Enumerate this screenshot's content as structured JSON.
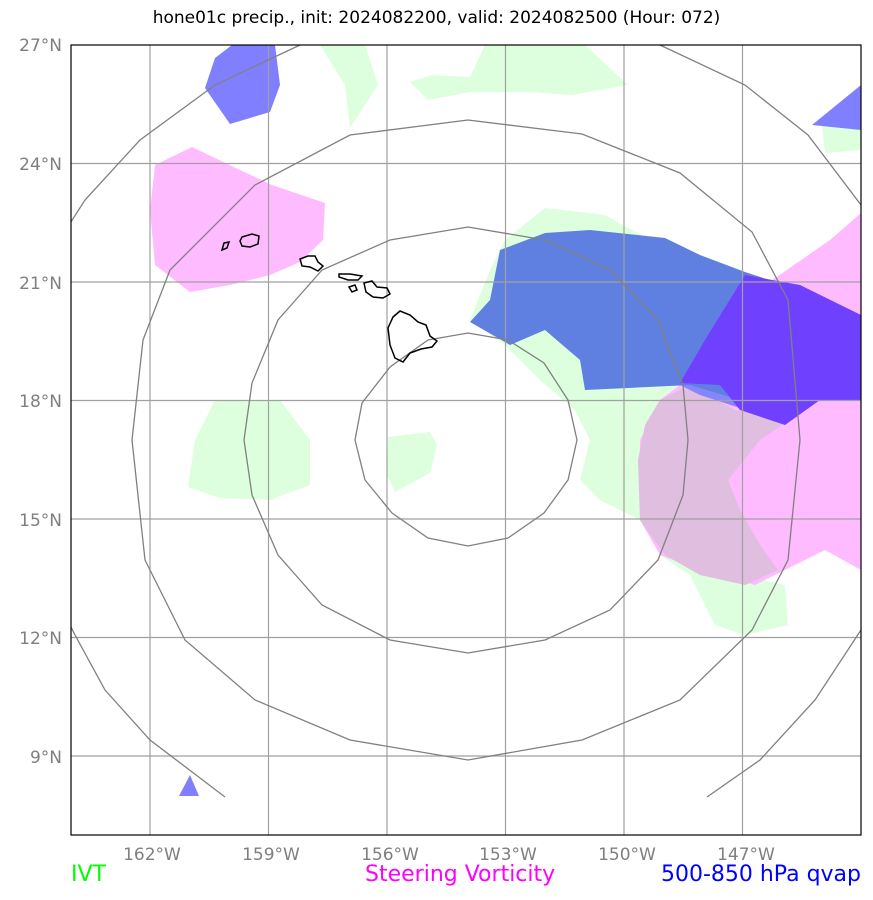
{
  "title": "hone01c precip., init: 2024082200, valid: 2024082500 (Hour: 072)",
  "map": {
    "lon_range": [
      -164,
      -144
    ],
    "lat_range": [
      7,
      27
    ],
    "lat_ticks": [
      "27°N",
      "24°N",
      "21°N",
      "18°N",
      "15°N",
      "12°N",
      "9°N"
    ],
    "lon_ticks": [
      "162°W",
      "159°W",
      "156°W",
      "153°W",
      "150°W",
      "147°W"
    ],
    "grid": true,
    "range_rings": 4,
    "features": [
      "Hawaiian Islands coastline"
    ]
  },
  "legend": {
    "ivt": {
      "label": "IVT",
      "color": "#00ff00"
    },
    "vorticity": {
      "label": "Steering Vorticity",
      "color": "#ff00ff"
    },
    "qvap": {
      "label": "500-850 hPa qvap",
      "color": "#0000ff"
    }
  },
  "colors": {
    "ivt_fill": "#ddffdd",
    "vorticity_fill": "#ffbbff",
    "qvap_fill": "#7f7fff",
    "overlap_blue_green": "#5f80e0",
    "overlap_purple": "#7030ff",
    "overlap_pink_green": "#dfbedf",
    "grid": "#a0a0a0",
    "rings": "#808080"
  }
}
